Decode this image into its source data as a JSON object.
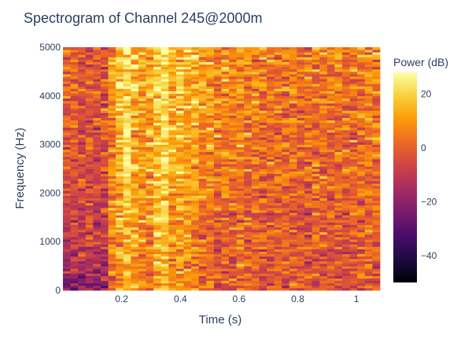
{
  "chart_data": {
    "type": "heatmap",
    "title": "Spectrogram of Channel 245@2000m",
    "xlabel": "Time (s)",
    "ylabel": "Frequency (Hz)",
    "colorbar_title": "Power (dB)",
    "x_range": [
      0.0,
      1.08
    ],
    "y_range": [
      0,
      5000
    ],
    "x_ticks": [
      0.2,
      0.4,
      0.6,
      0.8,
      1.0
    ],
    "x_tick_labels": [
      "0.2",
      "0.4",
      "0.6",
      "0.8",
      "1"
    ],
    "y_ticks": [
      0,
      1000,
      2000,
      3000,
      4000,
      5000
    ],
    "y_tick_labels": [
      "0",
      "1000",
      "2000",
      "3000",
      "4000",
      "5000"
    ],
    "z_range": [
      -50,
      28
    ],
    "colorbar_ticks": [
      20,
      0,
      -20,
      -40
    ],
    "colorbar_tick_labels": [
      "20",
      "0",
      "−20",
      "−40"
    ],
    "colorscale": "Inferno",
    "colors": [
      "#000004",
      "#1b0c41",
      "#4a0c6b",
      "#781c6d",
      "#a52c60",
      "#cf4446",
      "#ed6925",
      "#fb9b06",
      "#f7d13d",
      "#fcffa4"
    ],
    "n_time_bins": 42,
    "n_freq_bins": 100,
    "time_bins": [
      0.013,
      0.038,
      0.064,
      0.09,
      0.115,
      0.141,
      0.167,
      0.192,
      0.218,
      0.244,
      0.27,
      0.295,
      0.321,
      0.347,
      0.372,
      0.398,
      0.424,
      0.449,
      0.475,
      0.501,
      0.527,
      0.552,
      0.578,
      0.604,
      0.629,
      0.655,
      0.681,
      0.706,
      0.732,
      0.758,
      0.784,
      0.809,
      0.835,
      0.861,
      0.886,
      0.912,
      0.938,
      0.963,
      0.989,
      1.015,
      1.041,
      1.066
    ],
    "mean_power_db_by_time": [
      -4,
      -5,
      -6,
      -5,
      -6,
      -4,
      6,
      14,
      20,
      12,
      9,
      10,
      18,
      20,
      11,
      14,
      12,
      10,
      6,
      7,
      4,
      5,
      3,
      4,
      2,
      3,
      2,
      1,
      2,
      1,
      2,
      1,
      0,
      2,
      1,
      1,
      2,
      0,
      1,
      2,
      3,
      2
    ],
    "freq_trend_db_per_khz": 1.8,
    "noise_std_db": 7
  }
}
